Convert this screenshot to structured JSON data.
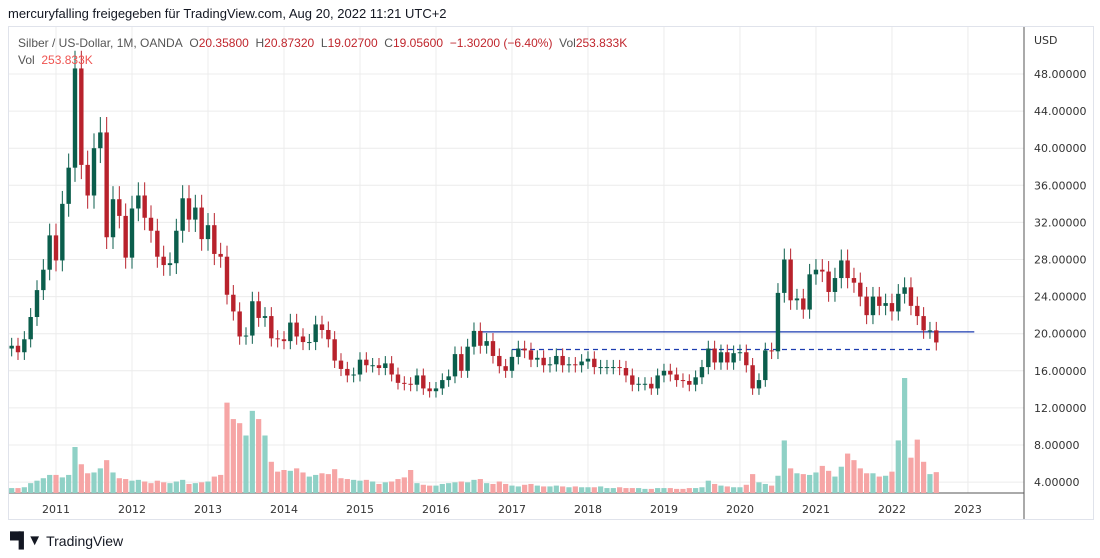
{
  "header": {
    "title": "mercuryfalling freigegeben für TradingView.com, Aug 20, 2022 11:21 UTC+2"
  },
  "legend": {
    "symbol": "Silber / US-Dollar, 1M, OANDA",
    "o_label": "O",
    "o": "20.35800",
    "h_label": "H",
    "h": "20.87320",
    "l_label": "L",
    "l": "19.02700",
    "c_label": "C",
    "c": "19.05600",
    "change": "−1.30200 (−6.40%)",
    "vol_label": "Vol",
    "vol": "253.833K",
    "vol2_label": "Vol",
    "vol2": "253.833K"
  },
  "footer": {
    "brand": "TradingView",
    "logo": "TV"
  },
  "colors": {
    "up": "#0b5e4c",
    "down": "#b8222c",
    "vol_up": "#8fd1c6",
    "vol_down": "#f6a5a5",
    "hline": "#1b3bb0",
    "grid": "#ececec"
  },
  "chart_data": {
    "type": "candlestick",
    "title": "Silber / US-Dollar, 1M, OANDA",
    "currency_label": "USD",
    "start": "2010-06",
    "interval": "1M",
    "first_open": 18.4,
    "closes": [
      18.7,
      18.0,
      19.4,
      21.8,
      24.7,
      26.9,
      30.6,
      27.9,
      34.0,
      37.9,
      48.6,
      38.2,
      34.9,
      40.0,
      41.7,
      30.4,
      34.5,
      32.7,
      28.2,
      33.5,
      34.9,
      32.5,
      31.1,
      28.3,
      27.4,
      27.6,
      31.1,
      34.6,
      32.3,
      33.6,
      30.2,
      31.7,
      28.6,
      28.3,
      24.2,
      22.4,
      19.7,
      19.8,
      23.5,
      21.7,
      21.9,
      19.5,
      19.4,
      19.2,
      21.2,
      19.7,
      19.1,
      19.1,
      21.0,
      20.4,
      19.4,
      17.1,
      16.2,
      15.5,
      15.6,
      17.2,
      16.6,
      16.6,
      16.3,
      16.8,
      15.6,
      14.7,
      14.6,
      14.5,
      15.5,
      14.1,
      13.8,
      14.1,
      15.0,
      15.4,
      17.8,
      16.0,
      18.6,
      20.3,
      18.7,
      19.2,
      17.6,
      16.5,
      16.0,
      17.5,
      18.4,
      18.2,
      17.2,
      17.4,
      16.6,
      16.7,
      17.6,
      16.6,
      16.7,
      16.6,
      17.0,
      17.3,
      16.4,
      16.4,
      16.4,
      16.4,
      16.3,
      15.5,
      14.5,
      14.6,
      14.6,
      14.1,
      15.5,
      16.0,
      15.6,
      15.0,
      14.9,
      14.5,
      15.3,
      16.4,
      18.4,
      16.9,
      18.0,
      16.9,
      17.9,
      18.0,
      16.6,
      14.1,
      15.0,
      18.2,
      18.1,
      24.4,
      28.0,
      23.6,
      23.8,
      22.6,
      26.4,
      26.9,
      26.7,
      24.5,
      26.0,
      27.9,
      26.0,
      25.5,
      24.0,
      22.0,
      24.0,
      23.0,
      23.3,
      22.4,
      24.3,
      25.0,
      23.0,
      21.9,
      20.36,
      20.36,
      19.056
    ],
    "volumes_k": [
      60,
      60,
      70,
      120,
      150,
      180,
      220,
      220,
      190,
      220,
      560,
      350,
      240,
      250,
      300,
      400,
      250,
      180,
      170,
      150,
      160,
      140,
      120,
      150,
      130,
      120,
      140,
      160,
      110,
      120,
      130,
      140,
      200,
      220,
      1100,
      900,
      850,
      700,
      1000,
      900,
      700,
      380,
      260,
      280,
      270,
      300,
      250,
      200,
      220,
      240,
      230,
      290,
      180,
      170,
      160,
      150,
      160,
      140,
      110,
      130,
      140,
      170,
      190,
      280,
      120,
      100,
      90,
      90,
      110,
      120,
      130,
      140,
      130,
      160,
      170,
      120,
      110,
      140,
      110,
      90,
      80,
      100,
      110,
      90,
      80,
      80,
      90,
      80,
      70,
      80,
      70,
      70,
      70,
      80,
      60,
      60,
      70,
      60,
      60,
      60,
      50,
      50,
      60,
      60,
      60,
      50,
      50,
      60,
      60,
      70,
      150,
      110,
      90,
      80,
      70,
      70,
      100,
      230,
      130,
      110,
      90,
      210,
      640,
      300,
      240,
      230,
      220,
      250,
      330,
      270,
      200,
      320,
      480,
      400,
      300,
      240,
      240,
      200,
      210,
      260,
      640,
      1400,
      430,
      650,
      380,
      230,
      254
    ],
    "y_ticks": [
      "48.00000",
      "44.00000",
      "40.00000",
      "36.00000",
      "32.00000",
      "28.00000",
      "24.00000",
      "20.00000",
      "16.00000",
      "12.00000",
      "8.00000",
      "4.00000"
    ],
    "y_tick_values": [
      48,
      44,
      40,
      36,
      32,
      28,
      24,
      20,
      16,
      12,
      8,
      4
    ],
    "x_ticks": [
      "2011",
      "2012",
      "2013",
      "2014",
      "2015",
      "2016",
      "2017",
      "2018",
      "2019",
      "2020",
      "2021",
      "2022",
      "2023"
    ],
    "hlines": [
      {
        "price": 20.2,
        "from": "2016-08",
        "to": "2023-02",
        "style": "solid"
      },
      {
        "price": 18.3,
        "from": "2017-01",
        "to": "2022-07",
        "style": "dashed"
      }
    ]
  }
}
